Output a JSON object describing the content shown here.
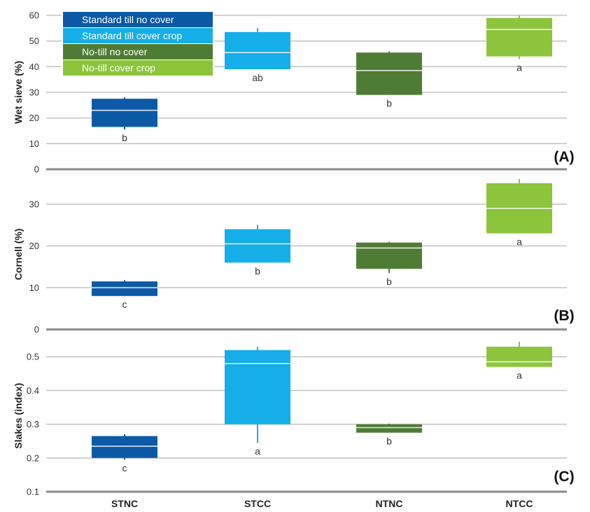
{
  "chart_data": [
    {
      "type": "box",
      "panel_label": "(A)",
      "ylabel": "Wet sieve (%)",
      "ylim": [
        0,
        60
      ],
      "yticks": [
        0,
        10,
        20,
        30,
        40,
        50,
        60
      ],
      "categories": [
        "STNC",
        "STCC",
        "NTNC",
        "NTCC"
      ],
      "boxes": [
        {
          "category": "STNC",
          "whisker_low": 15.5,
          "q1": 16.5,
          "median": 23,
          "q3": 27.5,
          "whisker_high": 28,
          "letter": "b"
        },
        {
          "category": "STCC",
          "whisker_low": 39,
          "q1": 39,
          "median": 45.5,
          "q3": 53.5,
          "whisker_high": 55,
          "letter": "ab"
        },
        {
          "category": "NTNC",
          "whisker_low": 29,
          "q1": 29,
          "median": 38.5,
          "q3": 45.5,
          "whisker_high": 46,
          "letter": "b"
        },
        {
          "category": "NTCC",
          "whisker_low": 43,
          "q1": 44,
          "median": 54.5,
          "q3": 59,
          "whisker_high": 60,
          "letter": "a"
        }
      ]
    },
    {
      "type": "box",
      "panel_label": "(B)",
      "ylabel": "Cornell (%)",
      "ylim": [
        0,
        36
      ],
      "yticks": [
        0,
        10,
        20,
        30
      ],
      "categories": [
        "STNC",
        "STCC",
        "NTNC",
        "NTCC"
      ],
      "boxes": [
        {
          "category": "STNC",
          "whisker_low": 8,
          "q1": 8,
          "median": 10,
          "q3": 11.5,
          "whisker_high": 11.8,
          "letter": "c"
        },
        {
          "category": "STCC",
          "whisker_low": 16,
          "q1": 16,
          "median": 20.5,
          "q3": 24,
          "whisker_high": 25,
          "letter": "b"
        },
        {
          "category": "NTNC",
          "whisker_low": 13.5,
          "q1": 14.5,
          "median": 19.5,
          "q3": 20.8,
          "whisker_high": 21,
          "letter": "b"
        },
        {
          "category": "NTCC",
          "whisker_low": 23,
          "q1": 23,
          "median": 29,
          "q3": 35,
          "whisker_high": 36,
          "letter": "a"
        }
      ]
    },
    {
      "type": "box",
      "panel_label": "(C)",
      "ylabel": "Slakes (index)",
      "ylim": [
        0.1,
        0.55
      ],
      "yticks": [
        0.1,
        0.2,
        0.3,
        0.4,
        0.5
      ],
      "categories": [
        "STNC",
        "STCC",
        "NTNC",
        "NTCC"
      ],
      "boxes": [
        {
          "category": "STNC",
          "whisker_low": 0.195,
          "q1": 0.2,
          "median": 0.235,
          "q3": 0.265,
          "whisker_high": 0.27,
          "letter": "c"
        },
        {
          "category": "STCC",
          "whisker_low": 0.245,
          "q1": 0.3,
          "median": 0.48,
          "q3": 0.52,
          "whisker_high": 0.53,
          "letter": "a"
        },
        {
          "category": "NTNC",
          "whisker_low": 0.275,
          "q1": 0.275,
          "median": 0.29,
          "q3": 0.3,
          "whisker_high": 0.302,
          "letter": "b"
        },
        {
          "category": "NTCC",
          "whisker_low": 0.47,
          "q1": 0.47,
          "median": 0.485,
          "q3": 0.53,
          "whisker_high": 0.545,
          "letter": "a"
        }
      ]
    }
  ],
  "legend": [
    {
      "label": "Standard till no cover",
      "color": "#0c5aa6"
    },
    {
      "label": "Standard till cover crop",
      "color": "#15aee8"
    },
    {
      "label": "No-till no cover",
      "color": "#4f7c34"
    },
    {
      "label": "No-till cover crop",
      "color": "#8cc43c"
    }
  ],
  "series_colors": {
    "STNC": "#0c5aa6",
    "STCC": "#15aee8",
    "NTNC": "#4f7c34",
    "NTCC": "#8cc43c"
  },
  "legend_position": "top-left"
}
